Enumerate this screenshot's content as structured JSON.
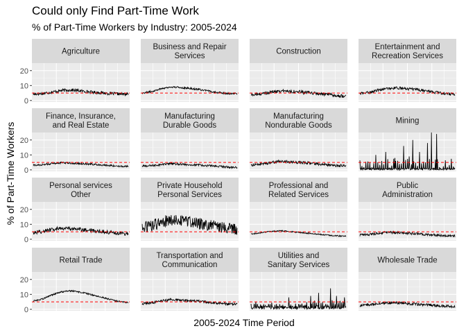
{
  "chart_data": {
    "type": "line",
    "title": "Could only Find Part-Time Work",
    "subtitle": "% of Part-Time Workers by Industry: 2005-2024",
    "xlabel": "2005-2024 Time Period",
    "ylabel": "% of Part-Time Workers",
    "ylim": [
      -1,
      25
    ],
    "yticks": [
      0,
      10,
      20
    ],
    "x_range": [
      2005,
      2024
    ],
    "reference_line": {
      "value": 5,
      "color": "#ff0000",
      "style": "dashed"
    },
    "line_color": "#000000",
    "panel_background": "#ebebeb",
    "strip_background": "#d9d9d9",
    "grid": true,
    "layout": {
      "columns": 4,
      "rows": 4
    },
    "panels": [
      {
        "label": [
          "Agriculture"
        ],
        "base": 4.2,
        "noise": 1.0,
        "profile": [
          0,
          0.5,
          1.5,
          2.5,
          2.8,
          2.2,
          1.5,
          1.0,
          0.5,
          0.2,
          0
        ],
        "spikes": null
      },
      {
        "label": [
          "Business and Repair",
          "Services"
        ],
        "base": 4.5,
        "noise": 0.6,
        "profile": [
          0.5,
          1.5,
          3.5,
          4.5,
          4.2,
          3.6,
          2.8,
          1.8,
          0.8,
          0.2,
          0
        ],
        "spikes": null
      },
      {
        "label": [
          "Construction"
        ],
        "base": 3.8,
        "noise": 1.1,
        "profile": [
          0,
          0.5,
          1.8,
          2.6,
          2.4,
          2.0,
          1.4,
          0.8,
          0.2,
          -0.5,
          -0.8
        ],
        "spikes": null
      },
      {
        "label": [
          "Entertainment and",
          "Recreation Services"
        ],
        "base": 4.6,
        "noise": 0.9,
        "profile": [
          0,
          0.8,
          2.5,
          3.5,
          3.8,
          3.2,
          2.6,
          1.8,
          0.8,
          0,
          -0.4
        ],
        "spikes": null
      },
      {
        "label": [
          "Finance, Insurance,",
          "and Real Estate"
        ],
        "base": 3.0,
        "noise": 0.6,
        "profile": [
          0,
          0.5,
          1.2,
          1.8,
          1.5,
          1.2,
          0.8,
          0.4,
          0,
          -0.5,
          -0.7
        ],
        "spikes": null
      },
      {
        "label": [
          "Manufacturing",
          "Durable Goods"
        ],
        "base": 2.5,
        "noise": 0.7,
        "profile": [
          0,
          0.3,
          1.0,
          1.6,
          1.3,
          1.0,
          0.7,
          0.3,
          -0.2,
          -0.6,
          -0.9
        ],
        "spikes": null
      },
      {
        "label": [
          "Manufacturing",
          "Nondurable Goods"
        ],
        "base": 3.2,
        "noise": 0.9,
        "profile": [
          0,
          0.6,
          1.6,
          2.4,
          2.2,
          1.8,
          1.4,
          0.8,
          0.2,
          -0.4,
          -0.6
        ],
        "spikes": null
      },
      {
        "label": [
          "Mining"
        ],
        "base": 0.5,
        "noise": 0.6,
        "profile": [
          0,
          0,
          0,
          0,
          0,
          0,
          0,
          0,
          0,
          0,
          0
        ],
        "spikes": {
          "every": 5,
          "scale": 7,
          "big": [
            [
              40,
              10
            ],
            [
              65,
              12
            ],
            [
              88,
              8
            ],
            [
              110,
              16
            ],
            [
              124,
              9
            ],
            [
              133,
              20
            ],
            [
              150,
              12
            ],
            [
              170,
              18
            ],
            [
              180,
              25
            ],
            [
              193,
              24
            ]
          ]
        }
      },
      {
        "label": [
          "Personal services",
          "Other"
        ],
        "base": 4.5,
        "noise": 1.3,
        "profile": [
          0,
          0.8,
          2.0,
          3.0,
          2.6,
          2.0,
          1.5,
          0.8,
          0.2,
          -0.4,
          -0.8
        ],
        "spikes": null
      },
      {
        "label": [
          "Private Household",
          "Personal Services"
        ],
        "base": 8.5,
        "noise": 3.8,
        "profile": [
          -1,
          0.5,
          3.0,
          4.5,
          4.0,
          3.0,
          2.0,
          1.0,
          0,
          -1,
          -1.5
        ],
        "spikes": null
      },
      {
        "label": [
          "Professional and",
          "Related Services"
        ],
        "base": 3.0,
        "noise": 0.4,
        "profile": [
          0.5,
          1.2,
          2.2,
          2.6,
          2.2,
          1.6,
          1.0,
          0.4,
          -0.2,
          -0.7,
          -1.0
        ],
        "spikes": null
      },
      {
        "label": [
          "Public",
          "Administration"
        ],
        "base": 2.8,
        "noise": 0.8,
        "profile": [
          0,
          0.4,
          1.2,
          1.8,
          1.6,
          1.2,
          0.8,
          0.4,
          0,
          -0.4,
          -0.6
        ],
        "spikes": null
      },
      {
        "label": [
          "Retail Trade"
        ],
        "base": 5.2,
        "noise": 0.5,
        "profile": [
          0.3,
          1.8,
          4.5,
          6.5,
          7.2,
          6.2,
          4.8,
          3.2,
          1.6,
          0.2,
          -0.8
        ],
        "spikes": null
      },
      {
        "label": [
          "Transportation and",
          "Communication"
        ],
        "base": 3.8,
        "noise": 0.8,
        "profile": [
          0,
          0.6,
          1.8,
          2.6,
          2.5,
          2.0,
          1.6,
          0.9,
          0.3,
          -0.2,
          -0.4
        ],
        "spikes": null
      },
      {
        "label": [
          "Utilities and",
          "Sanitary Services"
        ],
        "base": 1.2,
        "noise": 1.2,
        "profile": [
          0,
          0,
          0,
          0,
          0,
          0,
          0,
          0,
          0,
          0,
          0
        ],
        "spikes": {
          "every": 4,
          "scale": 4,
          "big": [
            [
              95,
              8
            ],
            [
              150,
              9
            ],
            [
              170,
              11
            ],
            [
              200,
              14
            ],
            [
              215,
              9
            ],
            [
              235,
              8
            ]
          ]
        }
      },
      {
        "label": [
          "Wholesale Trade"
        ],
        "base": 2.6,
        "noise": 0.9,
        "profile": [
          0,
          0.5,
          1.3,
          1.8,
          1.6,
          1.2,
          0.8,
          0.4,
          0,
          -0.5,
          -0.8
        ],
        "spikes": null
      }
    ]
  }
}
